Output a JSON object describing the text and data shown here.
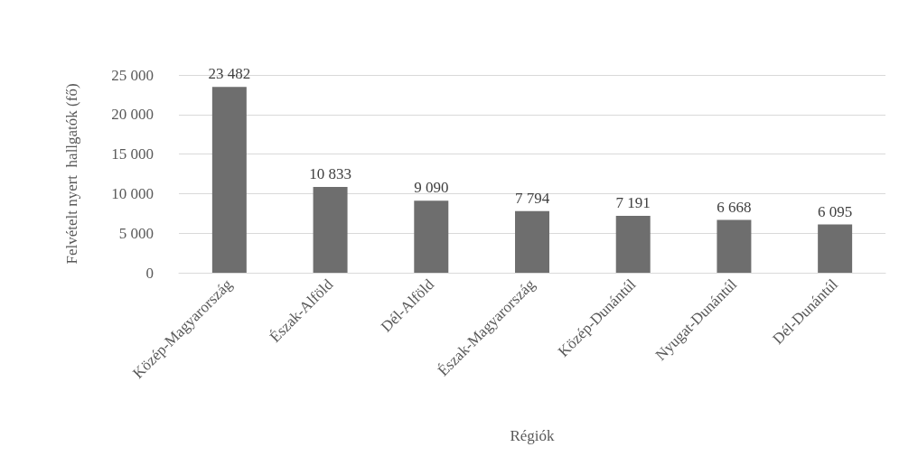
{
  "chart_data": {
    "type": "bar",
    "xlabel": "Régiók",
    "ylabel": "Felvételt nyert  hallgatók (fő)",
    "categories": [
      "Közép-Magyarország",
      "Észak-Alföld",
      "Dél-Alföld",
      "Észak-Magyarország",
      "Közép-Dunántúl",
      "Nyugat-Dunántúl",
      "Dél-Dunántúl"
    ],
    "values": [
      23482,
      10833,
      9090,
      7794,
      7191,
      6668,
      6095
    ],
    "value_labels": [
      "23 482",
      "10 833",
      "9 090",
      "7 794",
      "7 191",
      "6 668",
      "6 095"
    ],
    "color": "#6e6e6e",
    "ylim": [
      0,
      25000
    ],
    "yticks": [
      {
        "value": 0,
        "label": "0"
      },
      {
        "value": 5000,
        "label": "5 000"
      },
      {
        "value": 10000,
        "label": "10 000"
      },
      {
        "value": 15000,
        "label": "15 000"
      },
      {
        "value": 20000,
        "label": "20 000"
      },
      {
        "value": 25000,
        "label": "25 000"
      }
    ],
    "grid": "y"
  }
}
